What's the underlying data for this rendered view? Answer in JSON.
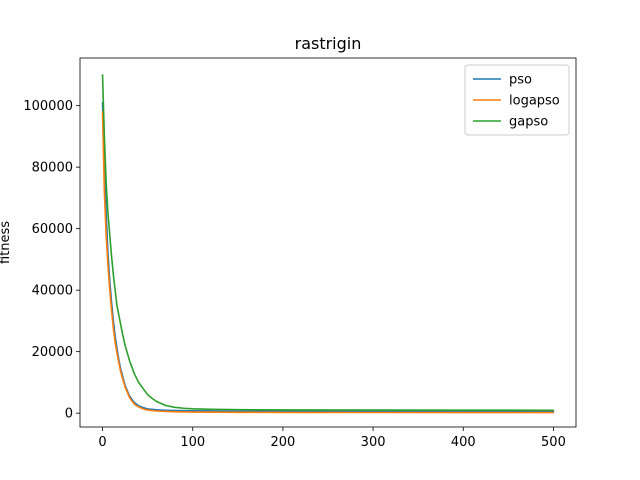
{
  "chart_data": {
    "type": "line",
    "title": "rastrigin",
    "xlabel": "",
    "ylabel": "fitness",
    "xlim": [
      -25,
      525
    ],
    "ylim": [
      -4500,
      115500
    ],
    "xticks": [
      0,
      100,
      200,
      300,
      400,
      500
    ],
    "yticks": [
      0,
      20000,
      40000,
      60000,
      80000,
      100000
    ],
    "xtick_labels": [
      "0",
      "100",
      "200",
      "300",
      "400",
      "500"
    ],
    "ytick_labels": [
      "0",
      "20000",
      "40000",
      "60000",
      "80000",
      "100000"
    ],
    "grid": false,
    "legend_position": "top-right",
    "series": [
      {
        "name": "pso",
        "color": "#1f77b4",
        "x": [
          0,
          2,
          4,
          6,
          8,
          10,
          12,
          14,
          16,
          18,
          20,
          25,
          30,
          35,
          40,
          45,
          50,
          60,
          70,
          80,
          100,
          150,
          200,
          300,
          400,
          500
        ],
        "y": [
          101000,
          80000,
          65000,
          52000,
          43000,
          36000,
          30000,
          25000,
          21000,
          17500,
          14500,
          9000,
          5500,
          3500,
          2400,
          1800,
          1400,
          1100,
          950,
          850,
          750,
          650,
          600,
          560,
          530,
          500
        ]
      },
      {
        "name": "logapso",
        "color": "#ff7f0e",
        "x": [
          0,
          2,
          4,
          6,
          8,
          10,
          12,
          14,
          16,
          18,
          20,
          25,
          30,
          35,
          40,
          45,
          50,
          60,
          70,
          80,
          100,
          150,
          200,
          300,
          400,
          500
        ],
        "y": [
          98000,
          72000,
          58000,
          48000,
          40000,
          33500,
          27500,
          23000,
          19500,
          16500,
          13500,
          8500,
          5000,
          3000,
          2000,
          1400,
          1000,
          700,
          550,
          450,
          350,
          280,
          250,
          220,
          200,
          180
        ]
      },
      {
        "name": "gapso",
        "color": "#2ca02c",
        "x": [
          0,
          2,
          4,
          6,
          8,
          10,
          12,
          14,
          16,
          18,
          20,
          22,
          25,
          30,
          35,
          40,
          45,
          50,
          55,
          60,
          70,
          80,
          90,
          100,
          120,
          150,
          200,
          300,
          400,
          500
        ],
        "y": [
          110000,
          90000,
          75000,
          65000,
          58000,
          51000,
          45000,
          40000,
          35000,
          32000,
          29000,
          26000,
          22000,
          17000,
          13000,
          10000,
          8000,
          6000,
          4800,
          3800,
          2500,
          1900,
          1600,
          1400,
          1250,
          1150,
          1050,
          1000,
          980,
          950
        ]
      }
    ]
  }
}
